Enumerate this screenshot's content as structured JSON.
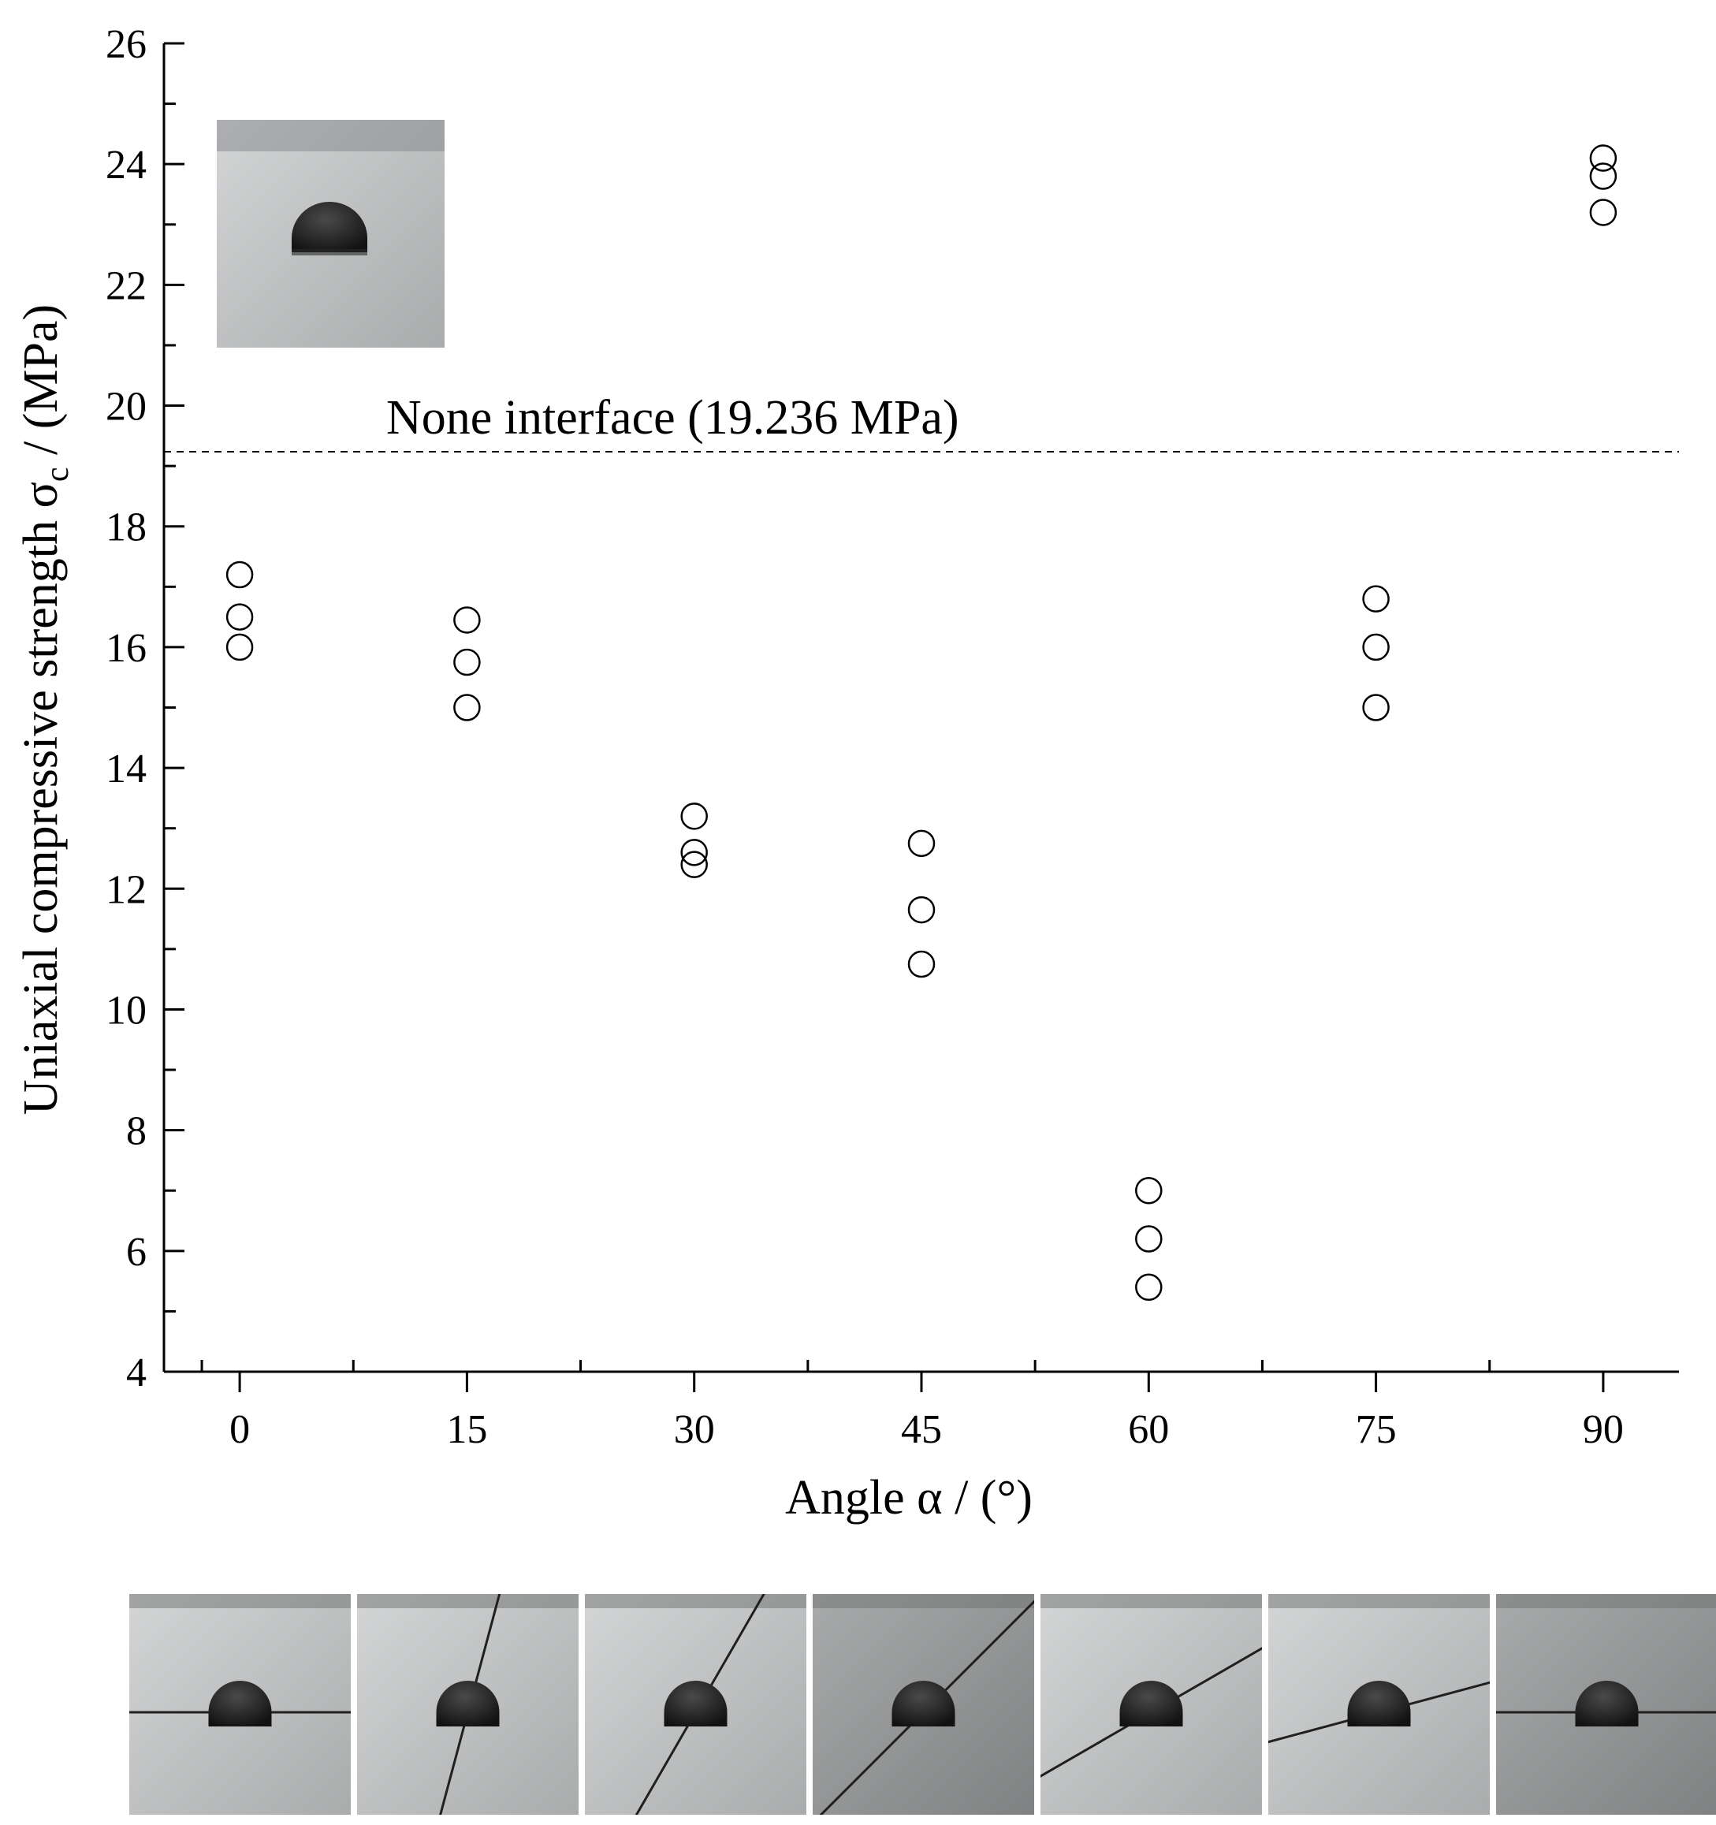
{
  "chart_data": {
    "type": "scatter",
    "xlabel": "Angle α / (°)",
    "ylabel_main": "Uniaxial compressive strength σ",
    "ylabel_sub": "c",
    "ylabel_tail": " / (MPa)",
    "x_ticks": [
      "0",
      "15",
      "30",
      "45",
      "60",
      "75",
      "90"
    ],
    "y_ticks": [
      "4",
      "6",
      "8",
      "10",
      "12",
      "14",
      "16",
      "18",
      "20",
      "22",
      "24",
      "26"
    ],
    "xlim": [
      -5,
      95
    ],
    "ylim": [
      4,
      26
    ],
    "grid": false,
    "marker": "open-circle",
    "reference_line": {
      "label": "None interface (19.236 MPa)",
      "value": 19.236,
      "style": "dashed"
    },
    "points": [
      {
        "x": 0,
        "y": 17.2
      },
      {
        "x": 0,
        "y": 16.5
      },
      {
        "x": 0,
        "y": 16.0
      },
      {
        "x": 15,
        "y": 16.45
      },
      {
        "x": 15,
        "y": 15.75
      },
      {
        "x": 15,
        "y": 15.0
      },
      {
        "x": 30,
        "y": 13.2
      },
      {
        "x": 30,
        "y": 12.6
      },
      {
        "x": 30,
        "y": 12.4
      },
      {
        "x": 45,
        "y": 12.75
      },
      {
        "x": 45,
        "y": 11.65
      },
      {
        "x": 45,
        "y": 10.75
      },
      {
        "x": 60,
        "y": 7.0
      },
      {
        "x": 60,
        "y": 6.2
      },
      {
        "x": 60,
        "y": 5.4
      },
      {
        "x": 75,
        "y": 16.8
      },
      {
        "x": 75,
        "y": 16.0
      },
      {
        "x": 75,
        "y": 15.0
      },
      {
        "x": 90,
        "y": 24.1
      },
      {
        "x": 90,
        "y": 23.8
      },
      {
        "x": 90,
        "y": 23.2
      }
    ]
  },
  "photos": {
    "inset": {
      "subject": "intact-specimen-photo"
    },
    "strip": [
      {
        "angle": 0,
        "crack_angle": 0
      },
      {
        "angle": 15,
        "crack_angle": 15
      },
      {
        "angle": 30,
        "crack_angle": 30
      },
      {
        "angle": 45,
        "crack_angle": 45
      },
      {
        "angle": 60,
        "crack_angle": 60
      },
      {
        "angle": 75,
        "crack_angle": 75
      },
      {
        "angle": 90,
        "crack_angle": 90
      }
    ]
  },
  "colors": {
    "axis": "#000000",
    "marker_stroke": "#000000",
    "concrete_light": "#c9cbcc",
    "concrete_dark": "#8f9192",
    "hole": "#1d1d1d"
  }
}
